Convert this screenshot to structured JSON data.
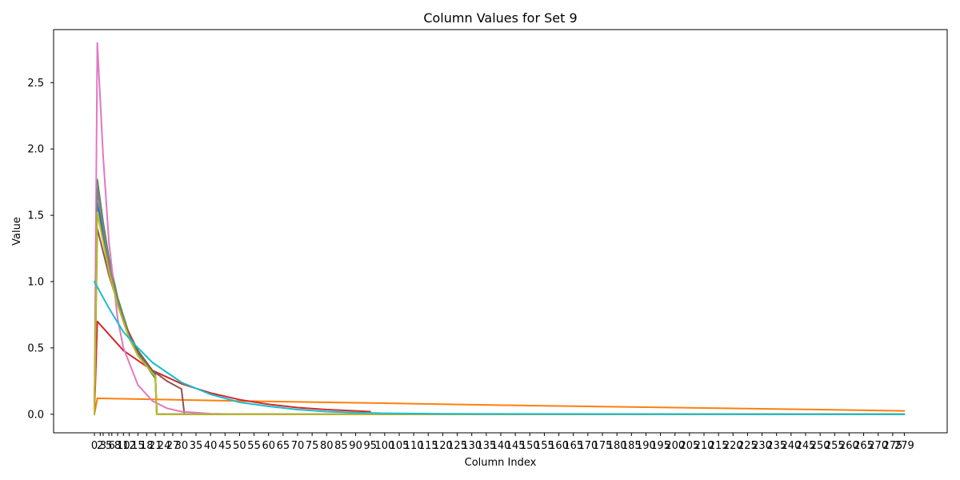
{
  "chart_data": {
    "type": "line",
    "title": "Column Values for Set 9",
    "xlabel": "Column Index",
    "ylabel": "Value",
    "xlim": [
      0,
      280
    ],
    "ylim": [
      -0.14,
      2.9
    ],
    "yticks": [
      0.0,
      0.5,
      1.0,
      1.5,
      2.0,
      2.5
    ],
    "ytick_labels": [
      "0.0",
      "0.5",
      "1.0",
      "1.5",
      "2.0",
      "2.5"
    ],
    "xticks": [
      0,
      2,
      3,
      5,
      6,
      8,
      10,
      12,
      15,
      18,
      21,
      24,
      27,
      30,
      35,
      40,
      45,
      50,
      55,
      60,
      65,
      70,
      75,
      80,
      85,
      90,
      95,
      100,
      105,
      110,
      115,
      120,
      125,
      130,
      135,
      140,
      145,
      150,
      155,
      160,
      165,
      170,
      175,
      180,
      185,
      190,
      195,
      200,
      205,
      210,
      215,
      220,
      225,
      230,
      235,
      240,
      245,
      250,
      255,
      260,
      265,
      270,
      275,
      279
    ],
    "xtick_labels": [
      "0",
      "2",
      "3",
      "5",
      "6",
      "8",
      "10",
      "12",
      "15",
      "18",
      "21",
      "24",
      "27",
      "30",
      "35",
      "40",
      "45",
      "50",
      "55",
      "60",
      "65",
      "70",
      "75",
      "80",
      "85",
      "90",
      "95",
      "100",
      "105",
      "110",
      "115",
      "120",
      "125",
      "130",
      "135",
      "140",
      "145",
      "150",
      "155",
      "160",
      "165",
      "170",
      "175",
      "180",
      "185",
      "190",
      "195",
      "200",
      "205",
      "210",
      "215",
      "220",
      "225",
      "230",
      "235",
      "240",
      "245",
      "250",
      "255",
      "260",
      "265",
      "270",
      "275",
      "279"
    ],
    "grid": false,
    "legend": "none",
    "series": [
      {
        "color": "#1f77b4",
        "points": [
          [
            0,
            0
          ],
          [
            1,
            1.6
          ],
          [
            3,
            1.35
          ],
          [
            5,
            1.1
          ],
          [
            8,
            0.85
          ],
          [
            12,
            0.6
          ],
          [
            15,
            0.47
          ],
          [
            20,
            0.32
          ],
          [
            21,
            0.3
          ],
          [
            21.5,
            0
          ],
          [
            279,
            0
          ]
        ]
      },
      {
        "color": "#ff7f0e",
        "points": [
          [
            0,
            0
          ],
          [
            1,
            0.12
          ],
          [
            50,
            0.1
          ],
          [
            100,
            0.083
          ],
          [
            150,
            0.065
          ],
          [
            200,
            0.05
          ],
          [
            250,
            0.035
          ],
          [
            279,
            0.025
          ]
        ]
      },
      {
        "color": "#2ca02c",
        "points": [
          [
            0,
            0
          ],
          [
            1,
            1.77
          ],
          [
            3,
            1.45
          ],
          [
            5,
            1.18
          ],
          [
            8,
            0.88
          ],
          [
            12,
            0.6
          ],
          [
            15,
            0.46
          ],
          [
            20,
            0.3
          ],
          [
            21,
            0.27
          ],
          [
            21.5,
            0
          ],
          [
            279,
            0
          ]
        ]
      },
      {
        "color": "#d62728",
        "points": [
          [
            0,
            0
          ],
          [
            1,
            0.7
          ],
          [
            10,
            0.48
          ],
          [
            20,
            0.33
          ],
          [
            30,
            0.23
          ],
          [
            40,
            0.16
          ],
          [
            50,
            0.11
          ],
          [
            60,
            0.075
          ],
          [
            70,
            0.05
          ],
          [
            80,
            0.035
          ],
          [
            90,
            0.025
          ],
          [
            95,
            0.02
          ]
        ]
      },
      {
        "color": "#9467bd",
        "points": [
          [
            0,
            0
          ],
          [
            1,
            1.73
          ],
          [
            3,
            1.42
          ],
          [
            5,
            1.15
          ],
          [
            8,
            0.86
          ],
          [
            12,
            0.59
          ],
          [
            15,
            0.45
          ],
          [
            20,
            0.31
          ],
          [
            21,
            0.28
          ],
          [
            21.5,
            0
          ],
          [
            279,
            0
          ]
        ]
      },
      {
        "color": "#8c564b",
        "points": [
          [
            0,
            0
          ],
          [
            1,
            1.4
          ],
          [
            5,
            1.05
          ],
          [
            10,
            0.7
          ],
          [
            15,
            0.48
          ],
          [
            20,
            0.33
          ],
          [
            25,
            0.25
          ],
          [
            30,
            0.19
          ],
          [
            31,
            0
          ],
          [
            279,
            0
          ]
        ]
      },
      {
        "color": "#e377c2",
        "points": [
          [
            0,
            0
          ],
          [
            1,
            2.8
          ],
          [
            3,
            1.95
          ],
          [
            5,
            1.3
          ],
          [
            8,
            0.72
          ],
          [
            10,
            0.5
          ],
          [
            15,
            0.22
          ],
          [
            20,
            0.1
          ],
          [
            25,
            0.045
          ],
          [
            30,
            0.02
          ],
          [
            40,
            0.004
          ],
          [
            50,
            0
          ],
          [
            279,
            0
          ]
        ]
      },
      {
        "color": "#7f7f7f",
        "points": [
          [
            0,
            0
          ],
          [
            1,
            1.7
          ],
          [
            3,
            1.4
          ],
          [
            5,
            1.13
          ],
          [
            8,
            0.85
          ],
          [
            12,
            0.58
          ],
          [
            15,
            0.45
          ],
          [
            20,
            0.31
          ],
          [
            21,
            0.28
          ],
          [
            21.5,
            0
          ],
          [
            279,
            0
          ]
        ]
      },
      {
        "color": "#bcbd22",
        "points": [
          [
            0,
            0
          ],
          [
            1,
            1.52
          ],
          [
            3,
            1.3
          ],
          [
            5,
            1.08
          ],
          [
            8,
            0.82
          ],
          [
            12,
            0.57
          ],
          [
            15,
            0.44
          ],
          [
            20,
            0.31
          ],
          [
            21,
            0.29
          ],
          [
            21.5,
            0
          ],
          [
            279,
            0
          ]
        ]
      },
      {
        "color": "#17becf",
        "points": [
          [
            0,
            1.0
          ],
          [
            5,
            0.8
          ],
          [
            10,
            0.62
          ],
          [
            15,
            0.5
          ],
          [
            20,
            0.39
          ],
          [
            30,
            0.24
          ],
          [
            40,
            0.15
          ],
          [
            50,
            0.09
          ],
          [
            60,
            0.06
          ],
          [
            70,
            0.035
          ],
          [
            80,
            0.02
          ],
          [
            90,
            0.012
          ],
          [
            100,
            0.007
          ],
          [
            120,
            0.003
          ],
          [
            279,
            0
          ]
        ]
      }
    ]
  }
}
